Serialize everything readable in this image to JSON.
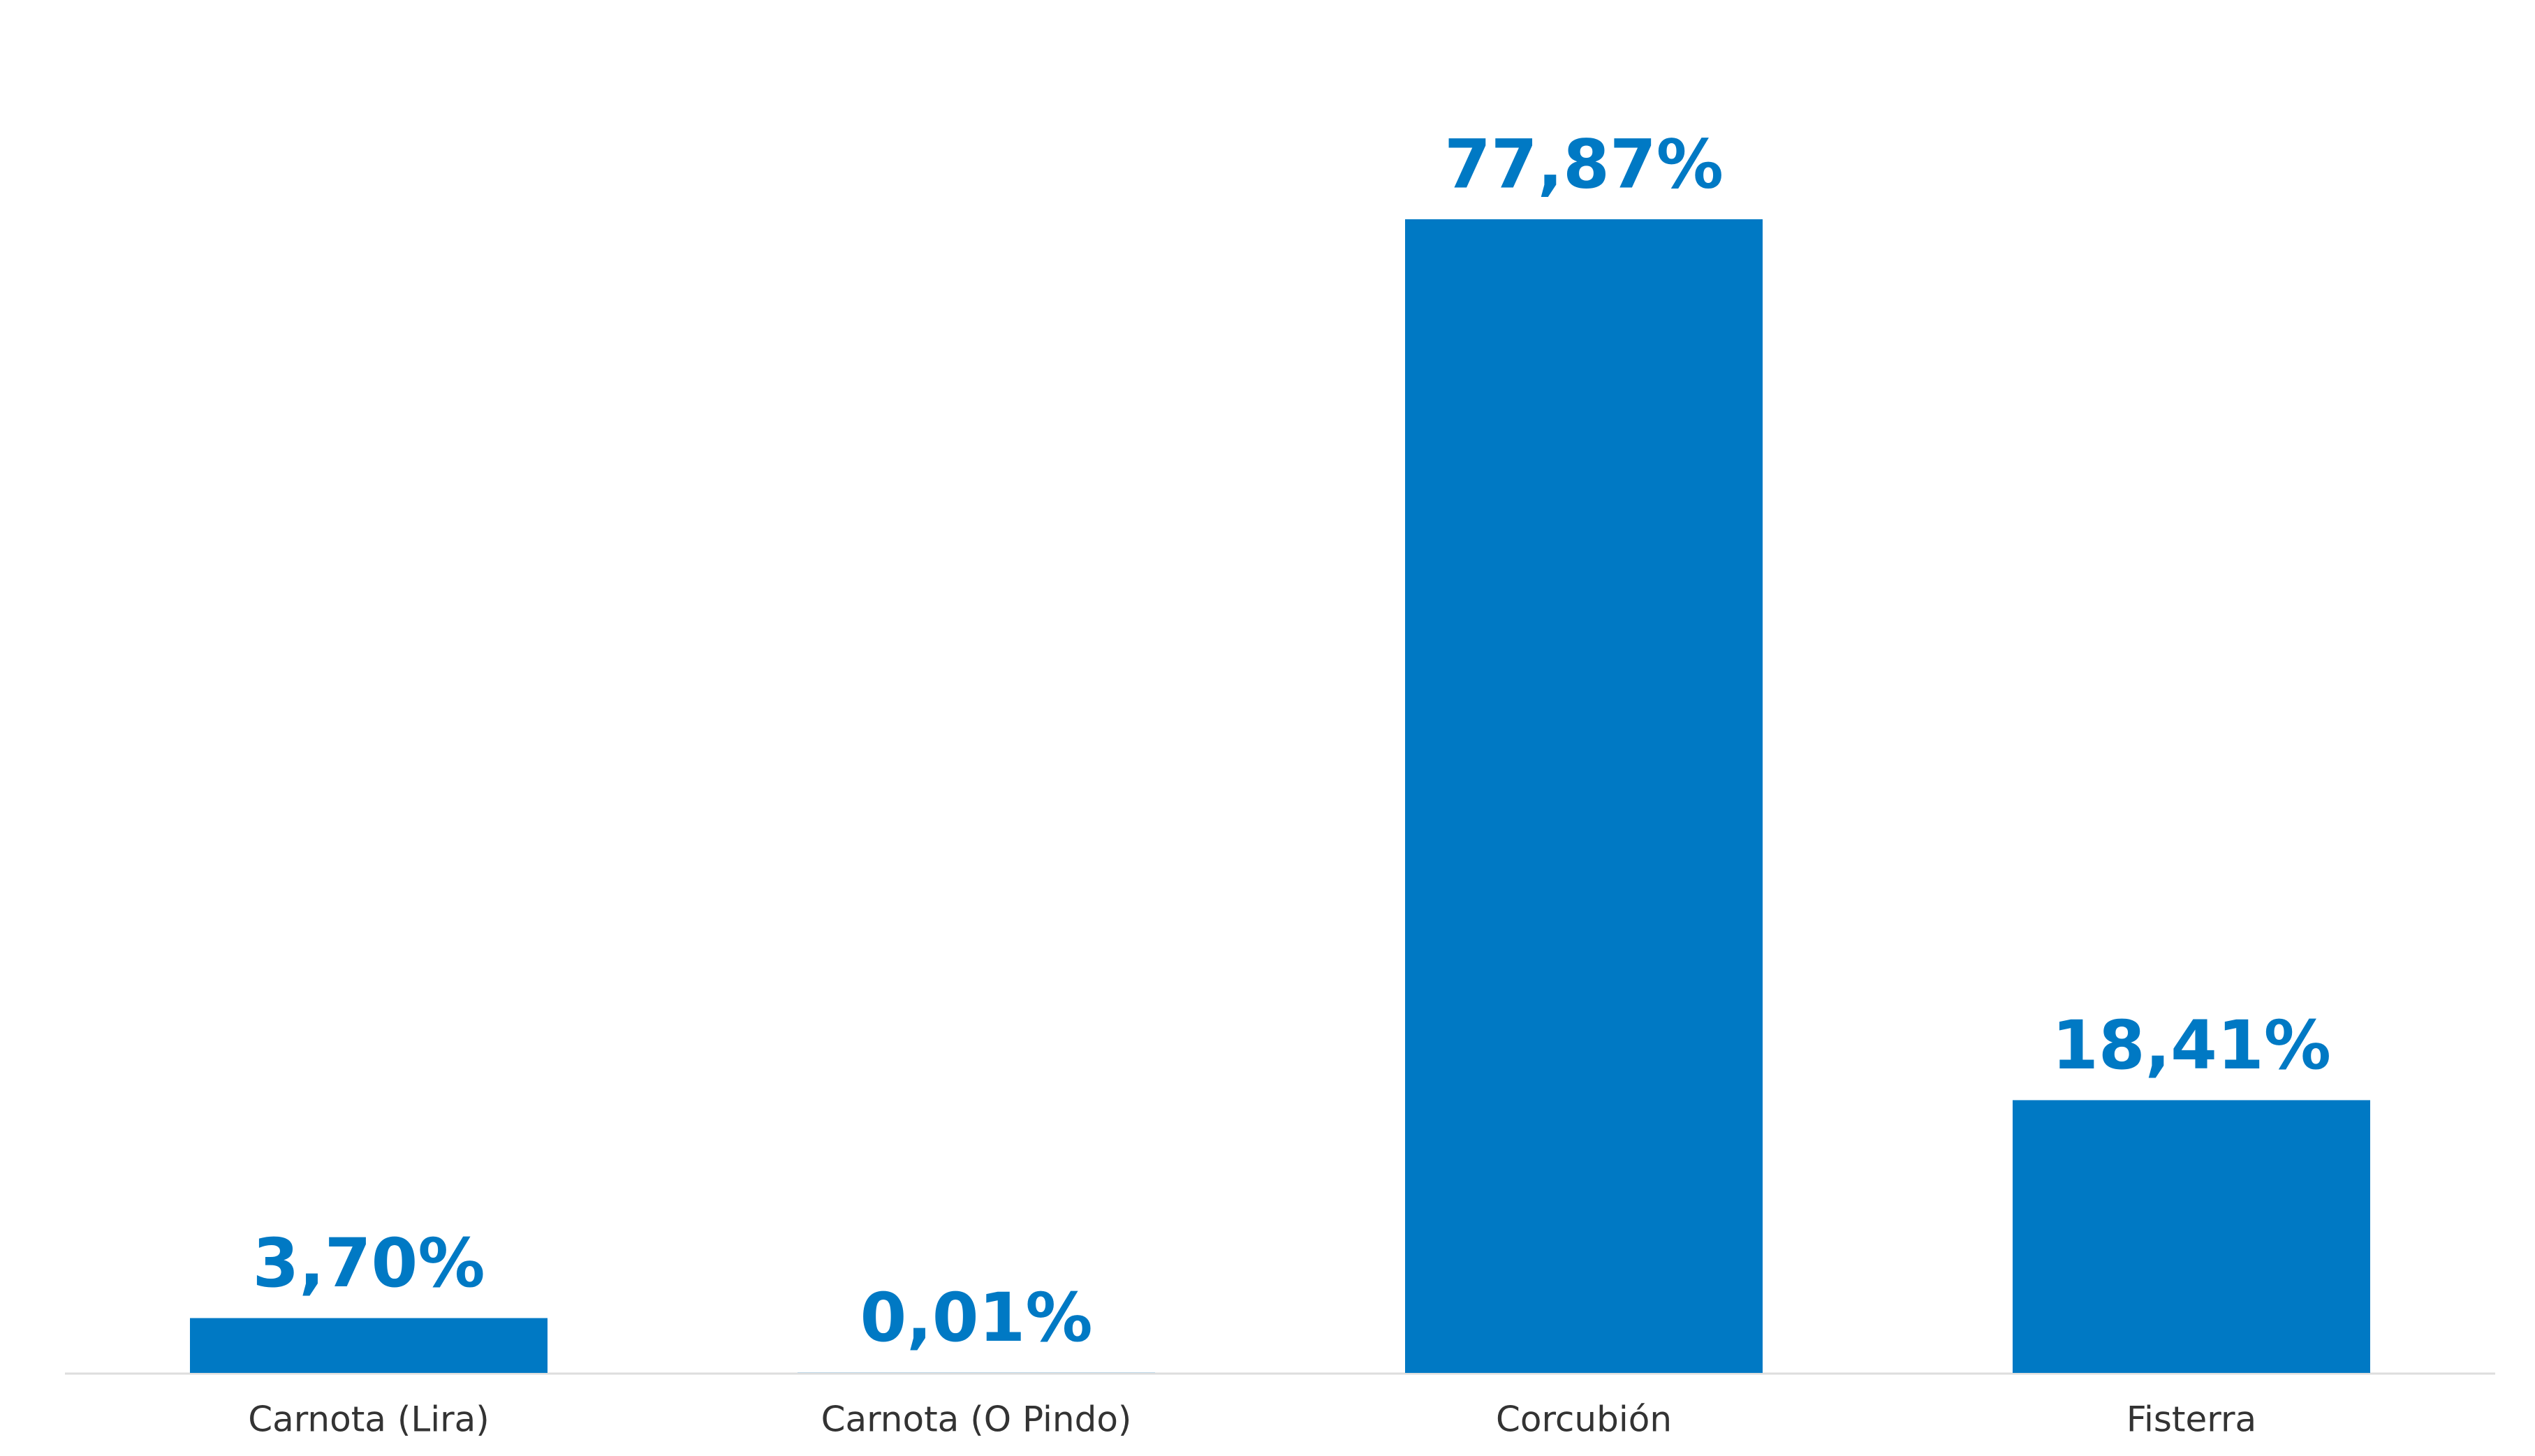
{
  "chart_data": {
    "type": "bar",
    "categories": [
      "Carnota (Lira)",
      "Carnota (O Pindo)",
      "Corcubión",
      "Fisterra"
    ],
    "values": [
      3.7,
      0.01,
      77.87,
      18.41
    ],
    "value_labels": [
      "3,70%",
      "0,01%",
      "77,87%",
      "18,41%"
    ],
    "color": "#0079c4"
  }
}
